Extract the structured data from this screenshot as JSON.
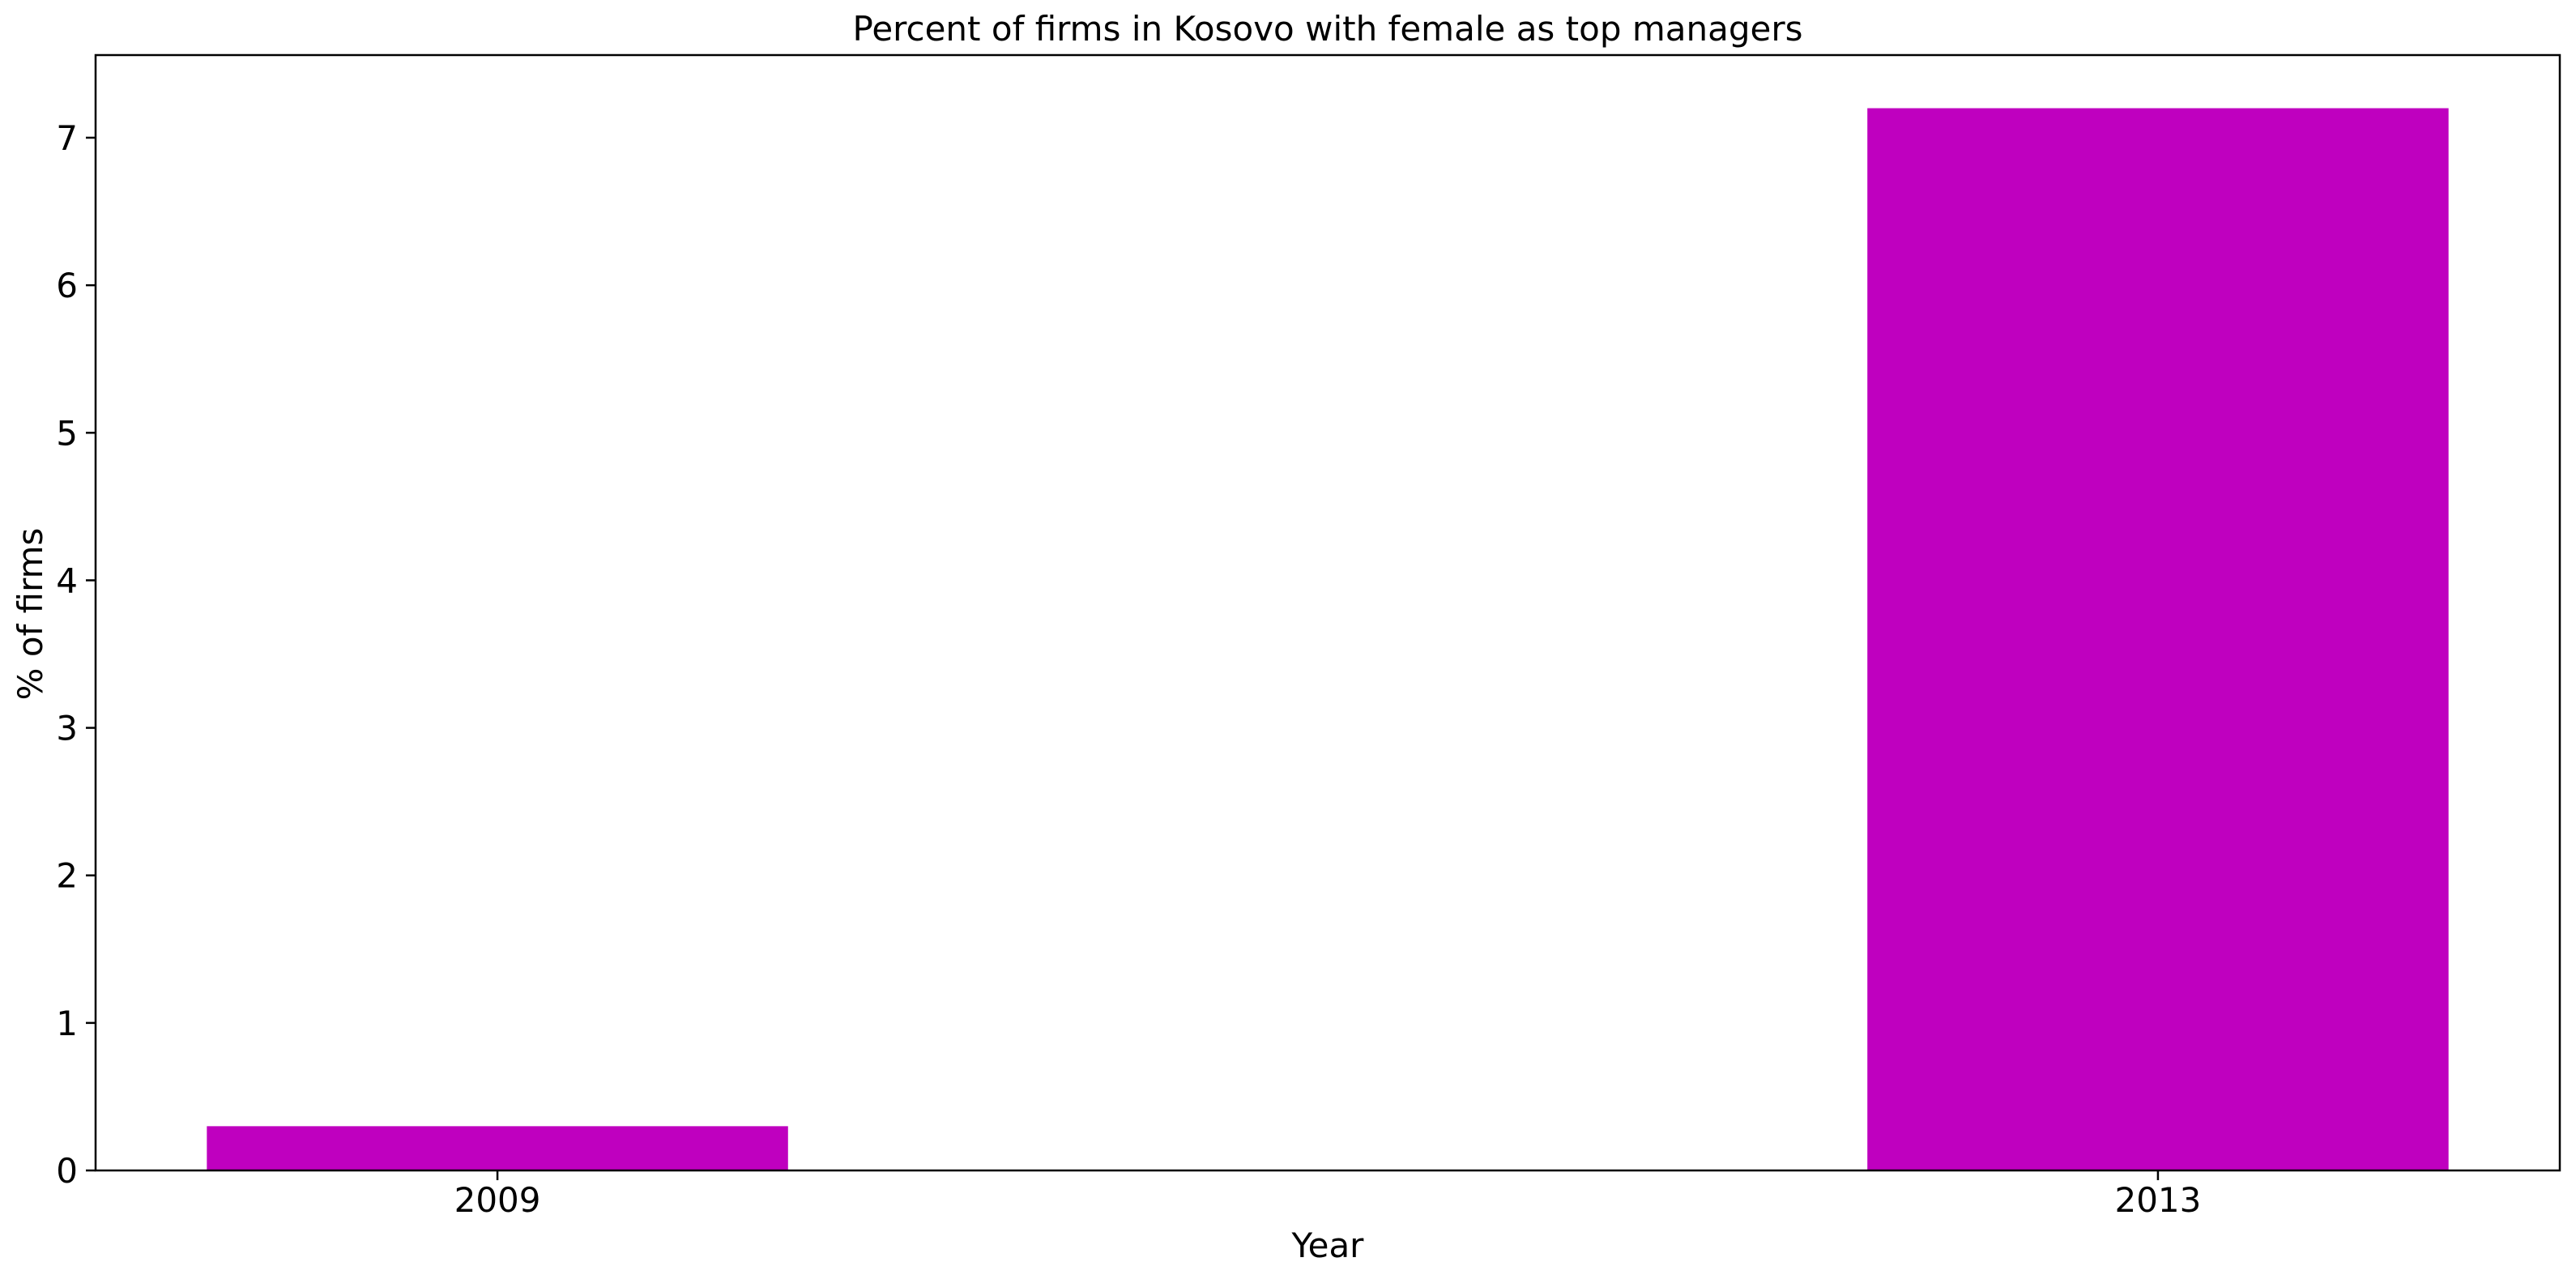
{
  "chart_data": {
    "type": "bar",
    "title": "Percent of firms in Kosovo with female as top managers",
    "xlabel": "Year",
    "ylabel": "% of firms",
    "categories": [
      "2009",
      "2013"
    ],
    "values": [
      0.3,
      7.2
    ],
    "ylim": [
      0,
      7.56
    ],
    "yticks": [
      0,
      1,
      2,
      3,
      4,
      5,
      6,
      7
    ],
    "bar_color": "#bf00bf",
    "grid": false,
    "legend": "none"
  }
}
